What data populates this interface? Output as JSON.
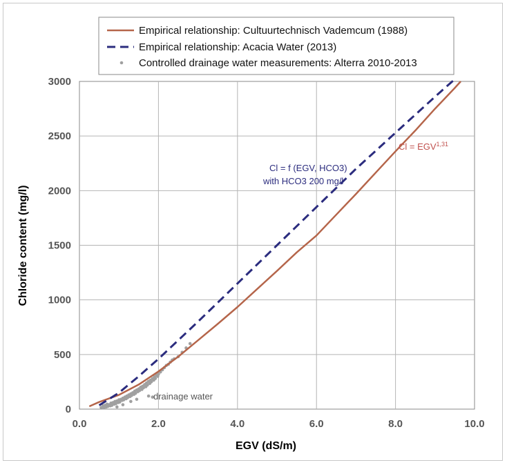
{
  "chart_data": {
    "type": "line",
    "xlabel": "EGV (dS/m)",
    "ylabel": "Chloride content (mg/l)",
    "xlim": [
      0,
      10
    ],
    "ylim": [
      0,
      3000
    ],
    "x_ticks": [
      "0.0",
      "2.0",
      "4.0",
      "6.0",
      "8.0",
      "10.0"
    ],
    "y_ticks": [
      "0",
      "500",
      "1000",
      "1500",
      "2000",
      "2500",
      "3000"
    ],
    "grid": true,
    "legend_position": "top",
    "series": [
      {
        "name": "Empirical relationship: Cultuurtechnisch Vademcum (1988)",
        "type": "line",
        "style": "solid",
        "color": "#b5654a",
        "x": [
          0.25,
          0.5,
          1.0,
          1.5,
          2.0,
          2.5,
          3.0,
          3.5,
          4.0,
          4.5,
          5.0,
          5.5,
          6.0,
          6.5,
          7.0,
          7.5,
          8.0,
          8.5,
          9.0,
          9.5,
          9.65
        ],
        "y": [
          25,
          65,
          130,
          225,
          345,
          480,
          630,
          780,
          935,
          1100,
          1265,
          1435,
          1590,
          1780,
          1970,
          2165,
          2360,
          2550,
          2750,
          2940,
          3000
        ]
      },
      {
        "name": "Empirical relationship: Acacia Water (2013)",
        "type": "line",
        "style": "dashed",
        "color": "#2b2c7e",
        "x": [
          0.5,
          1.0,
          1.5,
          2.0,
          3.0,
          4.0,
          5.0,
          6.0,
          7.0,
          8.0,
          9.0,
          9.5
        ],
        "y": [
          35,
          150,
          300,
          460,
          800,
          1150,
          1500,
          1850,
          2200,
          2530,
          2860,
          3020
        ]
      },
      {
        "name": "Controlled drainage water measurements: Alterra 2010-2013",
        "type": "scatter",
        "color": "#a0a0a0",
        "x": [
          0.55,
          0.6,
          0.62,
          0.65,
          0.68,
          0.7,
          0.72,
          0.75,
          0.78,
          0.8,
          0.82,
          0.85,
          0.88,
          0.9,
          0.92,
          0.95,
          0.98,
          1.0,
          1.02,
          1.05,
          1.08,
          1.1,
          1.12,
          1.15,
          1.18,
          1.2,
          1.22,
          1.25,
          1.28,
          1.3,
          1.32,
          1.35,
          1.38,
          1.4,
          1.42,
          1.45,
          1.48,
          1.5,
          1.52,
          1.55,
          1.58,
          1.6,
          1.62,
          1.65,
          1.68,
          1.7,
          1.72,
          1.75,
          1.78,
          1.8,
          1.82,
          1.85,
          1.88,
          1.9,
          1.92,
          1.95,
          1.98,
          2.0,
          2.05,
          2.1,
          2.15,
          2.2,
          2.25,
          2.3,
          2.35,
          2.4,
          2.5,
          2.6,
          2.7,
          2.8,
          1.75,
          1.85,
          1.45,
          1.3,
          1.1,
          0.95
        ],
        "y": [
          15,
          30,
          10,
          35,
          20,
          45,
          25,
          40,
          30,
          55,
          35,
          60,
          45,
          70,
          50,
          75,
          60,
          85,
          65,
          90,
          80,
          100,
          85,
          110,
          95,
          120,
          105,
          130,
          115,
          140,
          125,
          150,
          135,
          165,
          145,
          175,
          160,
          185,
          170,
          200,
          180,
          210,
          195,
          225,
          205,
          240,
          220,
          255,
          235,
          265,
          250,
          280,
          265,
          295,
          280,
          310,
          300,
          320,
          340,
          360,
          380,
          400,
          410,
          430,
          450,
          460,
          480,
          520,
          560,
          600,
          120,
          110,
          90,
          70,
          40,
          20
        ]
      }
    ],
    "annotations": [
      {
        "text": "Cl = EGV",
        "superscript": "1,31",
        "color": "#c0504d"
      },
      {
        "line1": "Cl = f (EGV, HCO3)",
        "line2": "with HCO3 200 mg/l",
        "color": "#2b2c7e"
      },
      {
        "text": "drainage water",
        "color": "#555555"
      }
    ]
  }
}
